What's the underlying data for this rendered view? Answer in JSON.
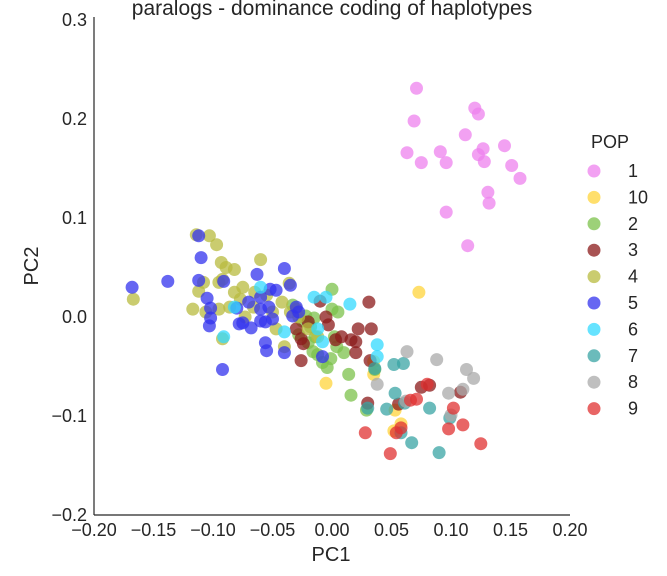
{
  "chart_data": {
    "type": "scatter",
    "title": "paralogs - dominance coding of haplotypes",
    "xlabel": "PC1",
    "ylabel": "PC2",
    "xlim": [
      -0.2,
      0.2
    ],
    "ylim": [
      -0.2,
      0.3
    ],
    "xticks": [
      "−0.20",
      "−0.15",
      "−0.10",
      "−0.05",
      "0.00",
      "0.05",
      "0.10",
      "0.15",
      "0.20"
    ],
    "xtick_values": [
      -0.2,
      -0.15,
      -0.1,
      -0.05,
      0.0,
      0.05,
      0.1,
      0.15,
      0.2
    ],
    "yticks": [
      "−0.2",
      "−0.1",
      "0.0",
      "0.1",
      "0.2",
      "0.3"
    ],
    "ytick_values": [
      -0.2,
      -0.1,
      0.0,
      0.1,
      0.2,
      0.3
    ],
    "grid": false,
    "legend_title": "POP",
    "legend_placement": "right",
    "series": [
      {
        "name": "1",
        "color": "#ee82ee",
        "points": [
          [
            0.071,
            0.231
          ],
          [
            0.069,
            0.198
          ],
          [
            0.123,
            0.205
          ],
          [
            0.12,
            0.211
          ],
          [
            0.112,
            0.184
          ],
          [
            0.145,
            0.173
          ],
          [
            0.063,
            0.166
          ],
          [
            0.091,
            0.167
          ],
          [
            0.127,
            0.17
          ],
          [
            0.123,
            0.164
          ],
          [
            0.128,
            0.157
          ],
          [
            0.075,
            0.156
          ],
          [
            0.096,
            0.156
          ],
          [
            0.151,
            0.153
          ],
          [
            0.158,
            0.14
          ],
          [
            0.131,
            0.126
          ],
          [
            0.132,
            0.115
          ],
          [
            0.096,
            0.106
          ],
          [
            0.114,
            0.072
          ]
        ]
      },
      {
        "name": "10",
        "color": "#ffd43b",
        "points": [
          [
            0.073,
            0.025
          ],
          [
            -0.005,
            -0.067
          ],
          [
            0.035,
            -0.045
          ],
          [
            0.035,
            -0.058
          ],
          [
            0.053,
            -0.094
          ],
          [
            0.058,
            -0.108
          ],
          [
            0.052,
            -0.115
          ]
        ]
      },
      {
        "name": "2",
        "color": "#7cc14b",
        "points": [
          [
            -0.033,
            0.012
          ],
          [
            -0.022,
            0.001
          ],
          [
            -0.025,
            -0.004
          ],
          [
            -0.015,
            -0.001
          ],
          [
            -0.018,
            -0.01
          ],
          [
            -0.014,
            -0.02
          ],
          [
            0.0,
            0.028
          ],
          [
            0.0,
            0.008
          ],
          [
            0.002,
            -0.02
          ],
          [
            0.005,
            0.005
          ],
          [
            -0.028,
            -0.018
          ],
          [
            -0.02,
            -0.026
          ],
          [
            -0.016,
            -0.035
          ],
          [
            -0.012,
            -0.038
          ],
          [
            -0.008,
            -0.046
          ],
          [
            -0.004,
            -0.051
          ],
          [
            -0.001,
            -0.042
          ],
          [
            0.004,
            -0.03
          ],
          [
            0.01,
            -0.036
          ],
          [
            0.014,
            -0.058
          ],
          [
            0.016,
            -0.079
          ],
          [
            0.029,
            -0.094
          ],
          [
            0.036,
            -0.053
          ]
        ]
      },
      {
        "name": "3",
        "color": "#8b1a1a",
        "points": [
          [
            -0.01,
            0.016
          ],
          [
            -0.005,
            0.0
          ],
          [
            0.008,
            -0.02
          ],
          [
            0.016,
            -0.023
          ],
          [
            0.02,
            -0.025
          ],
          [
            0.033,
            -0.012
          ],
          [
            0.031,
            0.015
          ],
          [
            -0.003,
            -0.008
          ],
          [
            0.003,
            -0.023
          ],
          [
            -0.02,
            -0.005
          ],
          [
            -0.03,
            -0.012
          ],
          [
            -0.026,
            -0.022
          ],
          [
            -0.024,
            -0.027
          ],
          [
            -0.026,
            -0.044
          ],
          [
            0.02,
            -0.036
          ],
          [
            0.022,
            -0.012
          ],
          [
            0.03,
            -0.087
          ],
          [
            0.032,
            -0.044
          ],
          [
            0.056,
            -0.088
          ],
          [
            0.075,
            -0.071
          ],
          [
            0.082,
            -0.069
          ],
          [
            0.108,
            -0.076
          ]
        ]
      },
      {
        "name": "4",
        "color": "#b8bb3f",
        "points": [
          [
            -0.167,
            0.018
          ],
          [
            -0.114,
            0.083
          ],
          [
            -0.103,
            0.082
          ],
          [
            -0.097,
            0.073
          ],
          [
            -0.093,
            0.055
          ],
          [
            -0.082,
            0.048
          ],
          [
            -0.092,
            0.038
          ],
          [
            -0.089,
            0.05
          ],
          [
            -0.06,
            0.058
          ],
          [
            -0.036,
            0.034
          ],
          [
            -0.112,
            0.026
          ],
          [
            -0.108,
            0.035
          ],
          [
            -0.086,
            0.01
          ],
          [
            -0.077,
            0.018
          ],
          [
            -0.075,
            0.03
          ],
          [
            -0.065,
            0.025
          ],
          [
            -0.055,
            0.022
          ],
          [
            -0.042,
            0.015
          ],
          [
            -0.095,
            0.008
          ],
          [
            -0.106,
            0.005
          ],
          [
            -0.117,
            0.008
          ],
          [
            -0.092,
            -0.022
          ],
          [
            -0.073,
            0.0
          ],
          [
            -0.066,
            0.01
          ],
          [
            -0.05,
            0.005
          ],
          [
            -0.047,
            -0.012
          ],
          [
            -0.035,
            0.005
          ],
          [
            -0.03,
            0.008
          ],
          [
            -0.028,
            0.0
          ],
          [
            -0.02,
            -0.012
          ],
          [
            -0.012,
            -0.02
          ],
          [
            -0.04,
            -0.03
          ],
          [
            -0.095,
            0.035
          ],
          [
            -0.082,
            0.025
          ]
        ]
      },
      {
        "name": "5",
        "color": "#3333ee",
        "points": [
          [
            -0.168,
            0.03
          ],
          [
            -0.138,
            0.036
          ],
          [
            -0.112,
            0.082
          ],
          [
            -0.11,
            0.06
          ],
          [
            -0.112,
            0.037
          ],
          [
            -0.091,
            0.036
          ],
          [
            -0.063,
            0.043
          ],
          [
            -0.052,
            0.028
          ],
          [
            -0.04,
            0.049
          ],
          [
            -0.035,
            0.032
          ],
          [
            -0.105,
            0.019
          ],
          [
            -0.102,
            0.009
          ],
          [
            -0.08,
            0.009
          ],
          [
            -0.07,
            0.015
          ],
          [
            -0.06,
            0.008
          ],
          [
            -0.047,
            0.027
          ],
          [
            -0.053,
            0.01
          ],
          [
            -0.03,
            0.01
          ],
          [
            -0.028,
            0.005
          ],
          [
            -0.102,
            -0.001
          ],
          [
            -0.103,
            -0.009
          ],
          [
            -0.078,
            -0.007
          ],
          [
            -0.068,
            -0.011
          ],
          [
            -0.06,
            -0.004
          ],
          [
            -0.056,
            -0.005
          ],
          [
            -0.05,
            -0.002
          ],
          [
            -0.056,
            -0.026
          ],
          [
            -0.055,
            -0.034
          ],
          [
            -0.04,
            -0.036
          ],
          [
            -0.075,
            -0.006
          ],
          [
            -0.092,
            -0.053
          ],
          [
            -0.008,
            -0.04
          ],
          [
            -0.06,
            0.02
          ],
          [
            -0.033,
            0.001
          ]
        ]
      },
      {
        "name": "6",
        "color": "#33d9ff",
        "points": [
          [
            -0.06,
            0.03
          ],
          [
            -0.015,
            0.02
          ],
          [
            -0.005,
            0.02
          ],
          [
            0.015,
            0.013
          ],
          [
            -0.082,
            0.01
          ],
          [
            -0.091,
            -0.02
          ],
          [
            -0.04,
            -0.015
          ],
          [
            -0.012,
            -0.012
          ],
          [
            -0.008,
            -0.025
          ],
          [
            0.038,
            -0.028
          ],
          [
            0.038,
            -0.04
          ]
        ]
      },
      {
        "name": "7",
        "color": "#3aa4a4",
        "points": [
          [
            0.052,
            -0.048
          ],
          [
            0.06,
            -0.047
          ],
          [
            0.036,
            -0.052
          ],
          [
            0.03,
            -0.092
          ],
          [
            0.046,
            -0.093
          ],
          [
            0.053,
            -0.077
          ],
          [
            0.061,
            -0.087
          ],
          [
            0.082,
            -0.092
          ],
          [
            0.099,
            -0.102
          ],
          [
            0.058,
            -0.117
          ],
          [
            0.067,
            -0.127
          ],
          [
            0.09,
            -0.137
          ]
        ]
      },
      {
        "name": "8",
        "color": "#aaaaaa",
        "points": [
          [
            0.063,
            -0.035
          ],
          [
            0.088,
            -0.043
          ],
          [
            0.038,
            -0.068
          ],
          [
            0.113,
            -0.053
          ],
          [
            0.119,
            -0.062
          ],
          [
            0.11,
            -0.073
          ],
          [
            0.098,
            -0.077
          ],
          [
            0.062,
            -0.085
          ],
          [
            0.1,
            -0.099
          ]
        ]
      },
      {
        "name": "9",
        "color": "#e03131",
        "points": [
          [
            0.028,
            -0.117
          ],
          [
            0.058,
            -0.112
          ],
          [
            0.054,
            -0.117
          ],
          [
            0.066,
            -0.084
          ],
          [
            0.071,
            -0.083
          ],
          [
            0.08,
            -0.068
          ],
          [
            0.102,
            -0.092
          ],
          [
            0.11,
            -0.109
          ],
          [
            0.098,
            -0.113
          ],
          [
            0.125,
            -0.128
          ],
          [
            0.049,
            -0.138
          ]
        ]
      }
    ]
  }
}
